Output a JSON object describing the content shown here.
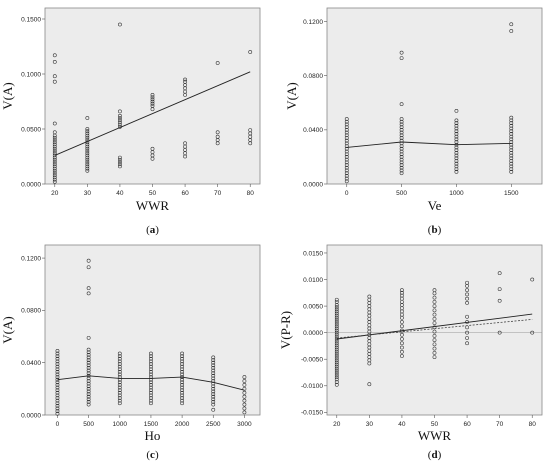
{
  "chart_data": [
    {
      "type": "scatter",
      "panel_label": "a",
      "xlabel": "WWR",
      "ylabel": "V(A)",
      "x_ticks": [
        20,
        30,
        40,
        50,
        60,
        70,
        80
      ],
      "y_ticks": [
        "0.0000",
        "0.0500",
        "0.1000",
        "0.1500"
      ],
      "xlim": [
        17,
        83
      ],
      "ylim": [
        0,
        0.16
      ],
      "points": [
        {
          "x": 20,
          "y": [
            0.117,
            0.111,
            0.098,
            0.093,
            0.055,
            0.047,
            0.044,
            0.042,
            0.04,
            0.038,
            0.036,
            0.034,
            0.032,
            0.03,
            0.028,
            0.026,
            0.024,
            0.022,
            0.02,
            0.018,
            0.016,
            0.014,
            0.012,
            0.01,
            0.008,
            0.006,
            0.004,
            0.002
          ]
        },
        {
          "x": 30,
          "y": [
            0.06,
            0.05,
            0.048,
            0.046,
            0.044,
            0.042,
            0.04,
            0.038,
            0.036,
            0.034,
            0.032,
            0.03,
            0.028,
            0.026,
            0.024,
            0.022,
            0.02,
            0.018,
            0.016,
            0.014,
            0.012
          ]
        },
        {
          "x": 40,
          "y": [
            0.145,
            0.066,
            0.062,
            0.06,
            0.058,
            0.056,
            0.054,
            0.052,
            0.024,
            0.022,
            0.02,
            0.018,
            0.016
          ]
        },
        {
          "x": 50,
          "y": [
            0.081,
            0.079,
            0.077,
            0.075,
            0.073,
            0.071,
            0.068,
            0.032,
            0.029,
            0.026,
            0.023
          ]
        },
        {
          "x": 60,
          "y": [
            0.095,
            0.093,
            0.09,
            0.087,
            0.084,
            0.081,
            0.037,
            0.034,
            0.031,
            0.028,
            0.025
          ]
        },
        {
          "x": 70,
          "y": [
            0.11,
            0.047,
            0.043,
            0.04,
            0.037
          ]
        },
        {
          "x": 80,
          "y": [
            0.12,
            0.049,
            0.046,
            0.043,
            0.04,
            0.037
          ]
        }
      ],
      "fit_lines": [
        {
          "style": "solid",
          "x": [
            20,
            80
          ],
          "y": [
            0.026,
            0.102
          ]
        }
      ]
    },
    {
      "type": "scatter",
      "panel_label": "b",
      "xlabel": "Ve",
      "ylabel": "V(A)",
      "x_ticks": [
        0,
        500,
        1000,
        1500
      ],
      "y_ticks": [
        "0.0000",
        "0.0400",
        "0.0800",
        "0.1200"
      ],
      "xlim": [
        -180,
        1780
      ],
      "ylim": [
        0,
        0.13
      ],
      "points": [
        {
          "x": 0,
          "y": [
            0.048,
            0.046,
            0.044,
            0.042,
            0.04,
            0.038,
            0.036,
            0.034,
            0.032,
            0.03,
            0.028,
            0.026,
            0.024,
            0.022,
            0.02,
            0.018,
            0.016,
            0.014,
            0.012,
            0.01,
            0.008,
            0.006,
            0.004,
            0.002
          ]
        },
        {
          "x": 500,
          "y": [
            0.097,
            0.093,
            0.059,
            0.048,
            0.046,
            0.044,
            0.042,
            0.04,
            0.038,
            0.036,
            0.034,
            0.032,
            0.03,
            0.028,
            0.026,
            0.024,
            0.022,
            0.02,
            0.018,
            0.016,
            0.014,
            0.012,
            0.01,
            0.008
          ]
        },
        {
          "x": 1000,
          "y": [
            0.054,
            0.047,
            0.045,
            0.043,
            0.041,
            0.039,
            0.037,
            0.035,
            0.033,
            0.031,
            0.029,
            0.027,
            0.025,
            0.023,
            0.021,
            0.019,
            0.017,
            0.015,
            0.013,
            0.011,
            0.009
          ]
        },
        {
          "x": 1500,
          "y": [
            0.118,
            0.113,
            0.049,
            0.047,
            0.045,
            0.043,
            0.041,
            0.039,
            0.037,
            0.035,
            0.033,
            0.031,
            0.029,
            0.027,
            0.025,
            0.023,
            0.021,
            0.019,
            0.017,
            0.015,
            0.013,
            0.011,
            0.009
          ]
        }
      ],
      "fit_lines": [
        {
          "style": "solid",
          "x": [
            0,
            500,
            1000,
            1500
          ],
          "y": [
            0.027,
            0.031,
            0.029,
            0.03
          ]
        }
      ]
    },
    {
      "type": "scatter",
      "panel_label": "c",
      "xlabel": "Ho",
      "ylabel": "V(A)",
      "x_ticks": [
        0,
        500,
        1000,
        1500,
        2000,
        2500,
        3000
      ],
      "y_ticks": [
        "0.0000",
        "0.0400",
        "0.0800",
        "0.1200"
      ],
      "xlim": [
        -200,
        3250
      ],
      "ylim": [
        0,
        0.13
      ],
      "points": [
        {
          "x": 0,
          "y": [
            0.049,
            0.047,
            0.045,
            0.043,
            0.041,
            0.039,
            0.037,
            0.035,
            0.033,
            0.031,
            0.029,
            0.027,
            0.025,
            0.023,
            0.021,
            0.019,
            0.017,
            0.015,
            0.013,
            0.011,
            0.009,
            0.007,
            0.005,
            0.003,
            0.001
          ]
        },
        {
          "x": 500,
          "y": [
            0.118,
            0.113,
            0.097,
            0.093,
            0.059,
            0.05,
            0.048,
            0.046,
            0.044,
            0.042,
            0.04,
            0.038,
            0.036,
            0.034,
            0.032,
            0.03,
            0.028,
            0.026,
            0.024,
            0.022,
            0.02,
            0.018,
            0.016,
            0.014,
            0.012,
            0.01,
            0.008
          ]
        },
        {
          "x": 1000,
          "y": [
            0.047,
            0.045,
            0.043,
            0.041,
            0.039,
            0.037,
            0.035,
            0.033,
            0.031,
            0.029,
            0.027,
            0.025,
            0.023,
            0.021,
            0.019,
            0.017,
            0.015,
            0.013,
            0.011,
            0.009
          ]
        },
        {
          "x": 1500,
          "y": [
            0.047,
            0.045,
            0.043,
            0.041,
            0.039,
            0.037,
            0.035,
            0.033,
            0.031,
            0.029,
            0.027,
            0.025,
            0.023,
            0.021,
            0.019,
            0.017,
            0.015,
            0.013,
            0.011,
            0.009
          ]
        },
        {
          "x": 2000,
          "y": [
            0.047,
            0.045,
            0.043,
            0.041,
            0.039,
            0.037,
            0.035,
            0.033,
            0.031,
            0.029,
            0.027,
            0.025,
            0.023,
            0.021,
            0.019,
            0.017,
            0.015,
            0.013,
            0.011,
            0.009
          ]
        },
        {
          "x": 2500,
          "y": [
            0.044,
            0.042,
            0.04,
            0.038,
            0.036,
            0.034,
            0.032,
            0.03,
            0.028,
            0.026,
            0.024,
            0.022,
            0.02,
            0.018,
            0.016,
            0.014,
            0.012,
            0.01,
            0.008,
            0.004
          ]
        },
        {
          "x": 3000,
          "y": [
            0.029,
            0.026,
            0.023,
            0.02,
            0.017,
            0.014,
            0.011,
            0.008,
            0.005,
            0.002
          ]
        }
      ],
      "fit_lines": [
        {
          "style": "solid",
          "x": [
            0,
            500,
            1000,
            1500,
            2000,
            2500,
            3000
          ],
          "y": [
            0.027,
            0.03,
            0.028,
            0.028,
            0.029,
            0.025,
            0.019
          ]
        }
      ]
    },
    {
      "type": "scatter",
      "panel_label": "d",
      "xlabel": "WWR",
      "ylabel": "V(P-R)",
      "x_ticks": [
        20,
        30,
        40,
        50,
        60,
        70,
        80
      ],
      "y_ticks": [
        "-0.0150",
        "-0.0100",
        "-0.0050",
        "0.0000",
        "0.0050",
        "0.0100",
        "0.0150"
      ],
      "xlim": [
        17,
        83
      ],
      "ylim": [
        -0.0155,
        0.0165
      ],
      "points": [
        {
          "x": 20,
          "y": [
            0.0062,
            0.0058,
            0.0052,
            0.0048,
            0.0044,
            0.004,
            0.0036,
            0.0032,
            0.0028,
            0.0024,
            0.002,
            0.0016,
            0.0012,
            0.0008,
            0.0004,
            0.0,
            -0.0004,
            -0.0008,
            -0.0012,
            -0.0016,
            -0.002,
            -0.0024,
            -0.0028,
            -0.0032,
            -0.0036,
            -0.004,
            -0.0044,
            -0.0048,
            -0.0052,
            -0.0056,
            -0.006,
            -0.0064,
            -0.0068,
            -0.0072,
            -0.0076,
            -0.008,
            -0.0084,
            -0.0088,
            -0.0093,
            -0.0098
          ]
        },
        {
          "x": 30,
          "y": [
            0.0068,
            0.0062,
            0.0056,
            0.005,
            0.0044,
            0.0038,
            0.0032,
            0.0026,
            0.002,
            0.0014,
            0.0008,
            0.0002,
            -0.0004,
            -0.001,
            -0.0016,
            -0.0022,
            -0.0028,
            -0.0034,
            -0.004,
            -0.0046,
            -0.0052,
            -0.0058,
            -0.0097
          ]
        },
        {
          "x": 40,
          "y": [
            0.008,
            0.0075,
            0.007,
            0.0064,
            0.0058,
            0.0052,
            0.0046,
            0.004,
            0.0034,
            0.0028,
            0.002,
            0.0012,
            0.0004,
            -0.0004,
            -0.0012,
            -0.002,
            -0.0028,
            -0.0036,
            -0.0044
          ]
        },
        {
          "x": 50,
          "y": [
            0.008,
            0.0074,
            0.0066,
            0.0058,
            0.005,
            0.0042,
            0.0034,
            0.0026,
            0.0018,
            0.001,
            0.0002,
            -0.0006,
            -0.0014,
            -0.0022,
            -0.003,
            -0.0038,
            -0.0046
          ]
        },
        {
          "x": 60,
          "y": [
            0.0094,
            0.0088,
            0.008,
            0.0072,
            0.0064,
            0.0056,
            0.003,
            0.002,
            0.001,
            0.0,
            -0.001,
            -0.002
          ]
        },
        {
          "x": 70,
          "y": [
            0.0112,
            0.0082,
            0.006,
            0.0
          ]
        },
        {
          "x": 80,
          "y": [
            0.01,
            0.0
          ]
        }
      ],
      "fit_lines": [
        {
          "style": "solid",
          "x": [
            20,
            80
          ],
          "y": [
            -0.0012,
            0.0035
          ]
        },
        {
          "style": "dashed",
          "x": [
            20,
            80
          ],
          "y": [
            -0.001,
            0.0025
          ]
        }
      ]
    }
  ]
}
